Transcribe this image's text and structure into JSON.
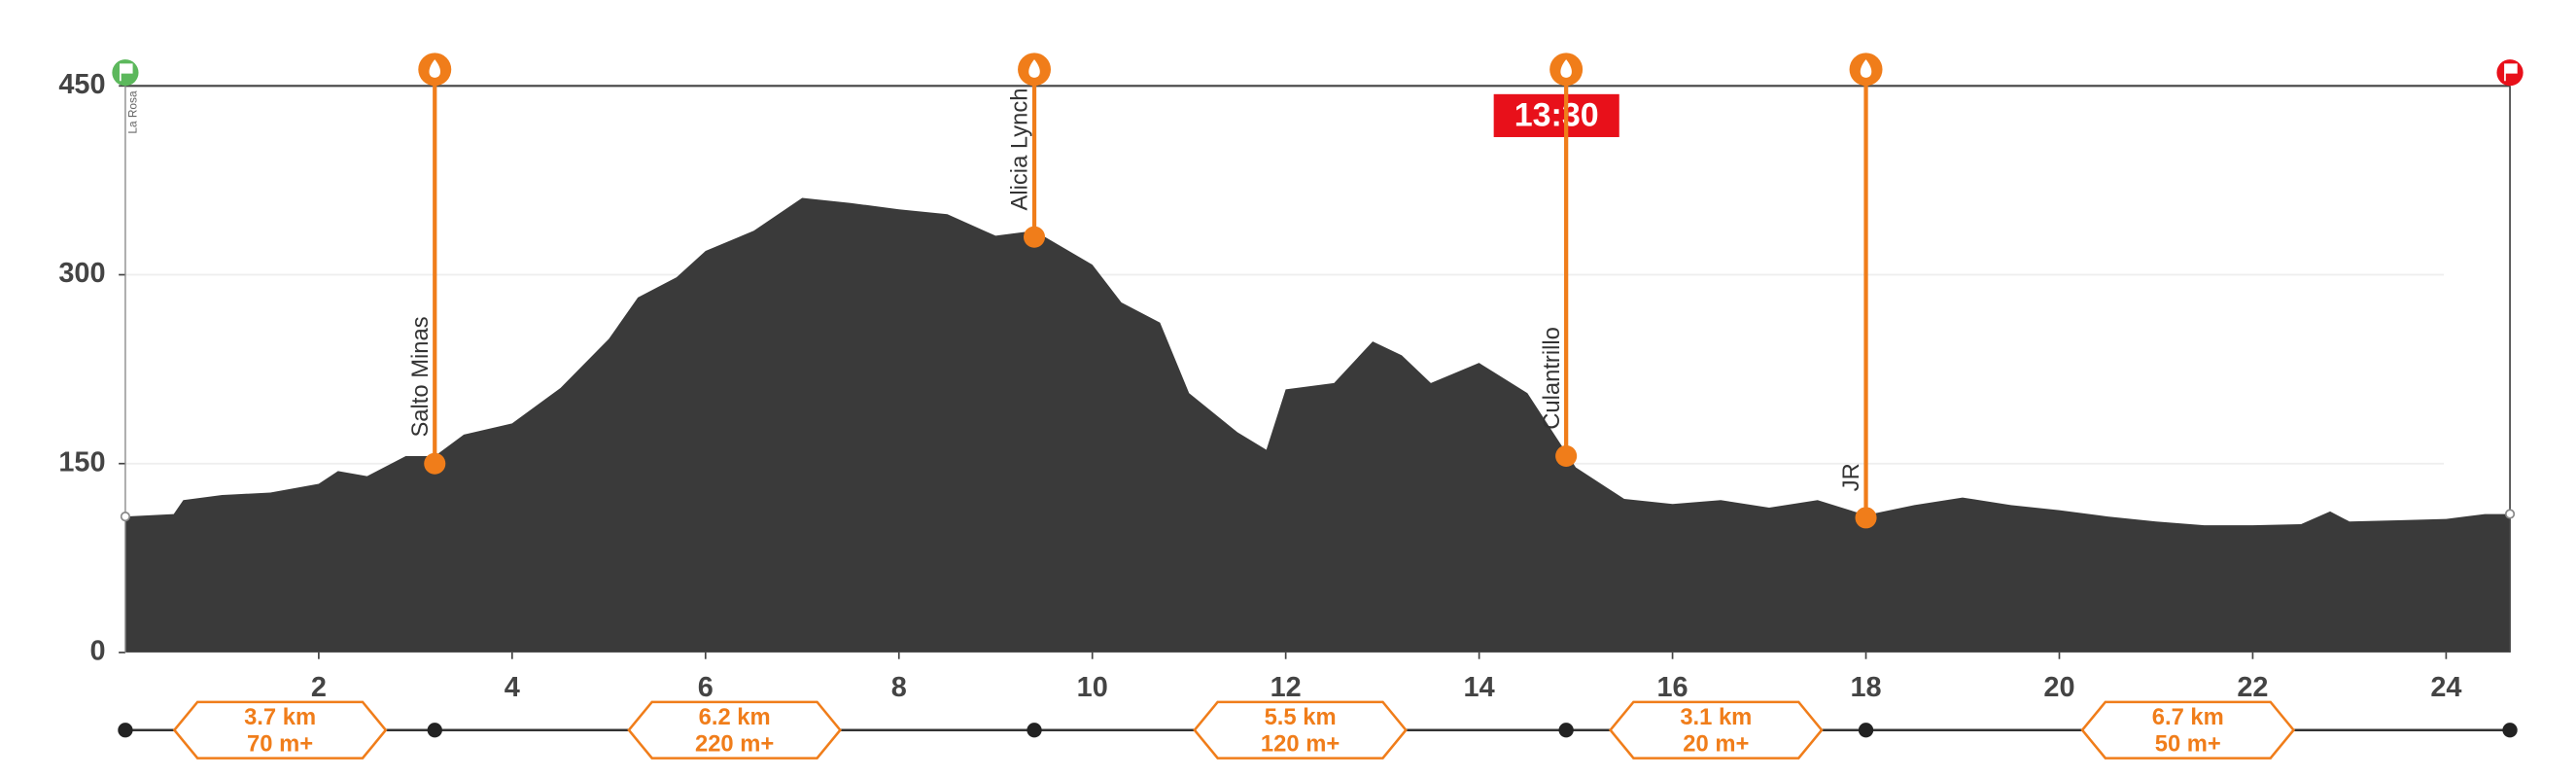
{
  "chart_data": {
    "type": "area",
    "color": "#3a3a3a",
    "x": [
      0,
      0.5,
      0.6,
      1,
      1.5,
      2,
      2.2,
      2.5,
      2.9,
      3.2,
      3.5,
      4,
      4.5,
      5,
      5.3,
      5.7,
      6,
      6.5,
      7,
      7.5,
      8,
      8.5,
      9,
      9.4,
      10,
      10.3,
      10.7,
      11,
      11.5,
      11.8,
      12,
      12.5,
      12.9,
      13.2,
      13.5,
      14,
      14.5,
      15,
      15.5,
      16,
      16.5,
      17,
      17.5,
      18,
      18.5,
      19,
      19.5,
      20,
      20.5,
      21,
      21.5,
      22,
      22.5,
      22.8,
      23,
      23.5,
      24,
      24.4,
      24.66
    ],
    "values": [
      108,
      110,
      121,
      125,
      127,
      134,
      144,
      140,
      156,
      156,
      173,
      182,
      210,
      249,
      282,
      298,
      319,
      335,
      361,
      357,
      352,
      348,
      331,
      335,
      308,
      278,
      262,
      206,
      175,
      161,
      209,
      214,
      247,
      236,
      214,
      230,
      206,
      147,
      122,
      118,
      121,
      115,
      121,
      109,
      117,
      123,
      117,
      113,
      108,
      104,
      101,
      101,
      102,
      112,
      104,
      105,
      106,
      110,
      110
    ],
    "xlim": [
      0,
      24.66
    ],
    "ylim": [
      0,
      450
    ],
    "xticks": [
      2,
      4,
      6,
      8,
      10,
      12,
      14,
      16,
      18,
      20,
      22,
      24
    ],
    "yticks": [
      0,
      150,
      300,
      450
    ],
    "grid": true,
    "line_color": "#f07d1a",
    "checkpoints": [
      {
        "name": "La Rosa",
        "x": 0,
        "y": 108,
        "marker_color": "#5cb85c"
      },
      {
        "name": "Salto Minas",
        "x": 3.2,
        "y": 150,
        "marker_color": "#f07d1a"
      },
      {
        "name": "Alicia Lynch",
        "x": 9.4,
        "y": 330,
        "marker_color": "#f07d1a"
      },
      {
        "name": "Culantrillo",
        "x": 14.9,
        "y": 156,
        "marker_color": "#f07d1a"
      },
      {
        "name": "JR",
        "x": 18,
        "y": 107,
        "marker_color": "#f07d1a"
      },
      {
        "x": 24.66,
        "y": 110,
        "marker_color": "#e8101a"
      }
    ],
    "time_label": {
      "text": "13:30",
      "x": 14.8,
      "color": "#e8101a"
    },
    "segments": [
      {
        "distance": "3.7 km",
        "gain": "70 m+"
      },
      {
        "distance": "6.2 km",
        "gain": "220 m+"
      },
      {
        "distance": "5.5 km",
        "gain": "120 m+"
      },
      {
        "distance": "3.1 km",
        "gain": "20 m+"
      },
      {
        "distance": "6.7 km",
        "gain": "50 m+"
      }
    ]
  }
}
